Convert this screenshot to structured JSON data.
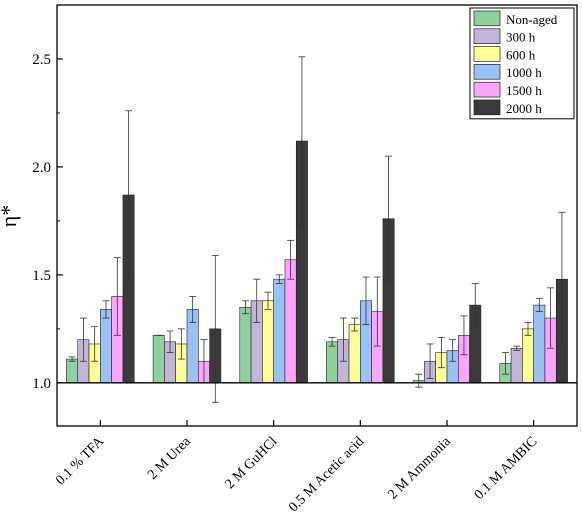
{
  "chart_data": {
    "type": "bar",
    "title": "",
    "xlabel": "",
    "ylabel": "η*",
    "ylim": [
      0.8,
      2.75
    ],
    "yticks": [
      1.0,
      1.5,
      2.0,
      2.5
    ],
    "ytick_labels": [
      "1.0",
      "1.5",
      "2.0",
      "2.5"
    ],
    "baseline": 1.0,
    "grid": false,
    "legend_position": "top-right",
    "categories": [
      "0.1 % TFA",
      "2 M Urea",
      "2 M GuHCl",
      "0.5 M Acetic acid",
      "2 M Ammonia",
      "0.1 M AMBIC"
    ],
    "series": [
      {
        "name": "Non-aged",
        "color": "#8fd19e",
        "values": [
          1.11,
          1.22,
          1.35,
          1.19,
          1.01,
          1.09
        ],
        "errors": [
          0.01,
          0.0,
          0.03,
          0.02,
          0.03,
          0.05
        ]
      },
      {
        "name": "300 h",
        "color": "#c3b4d9",
        "values": [
          1.2,
          1.19,
          1.38,
          1.2,
          1.1,
          1.16
        ],
        "errors": [
          0.1,
          0.05,
          0.1,
          0.1,
          0.08,
          0.01
        ]
      },
      {
        "name": "600 h",
        "color": "#fefe99",
        "values": [
          1.18,
          1.18,
          1.38,
          1.27,
          1.14,
          1.25
        ],
        "errors": [
          0.08,
          0.07,
          0.04,
          0.03,
          0.07,
          0.03
        ]
      },
      {
        "name": "1000 h",
        "color": "#99c1f5",
        "values": [
          1.34,
          1.34,
          1.48,
          1.38,
          1.15,
          1.36
        ],
        "errors": [
          0.04,
          0.06,
          0.02,
          0.11,
          0.05,
          0.03
        ]
      },
      {
        "name": "1500 h",
        "color": "#fca5fc",
        "values": [
          1.4,
          1.1,
          1.57,
          1.33,
          1.22,
          1.3
        ],
        "errors": [
          0.18,
          0.1,
          0.09,
          0.16,
          0.09,
          0.14
        ]
      },
      {
        "name": "2000 h",
        "color": "#3a3a3a",
        "values": [
          1.87,
          1.25,
          2.12,
          1.76,
          1.36,
          1.48
        ],
        "errors": [
          0.39,
          0.34,
          0.39,
          0.29,
          0.1,
          0.31
        ]
      }
    ]
  }
}
